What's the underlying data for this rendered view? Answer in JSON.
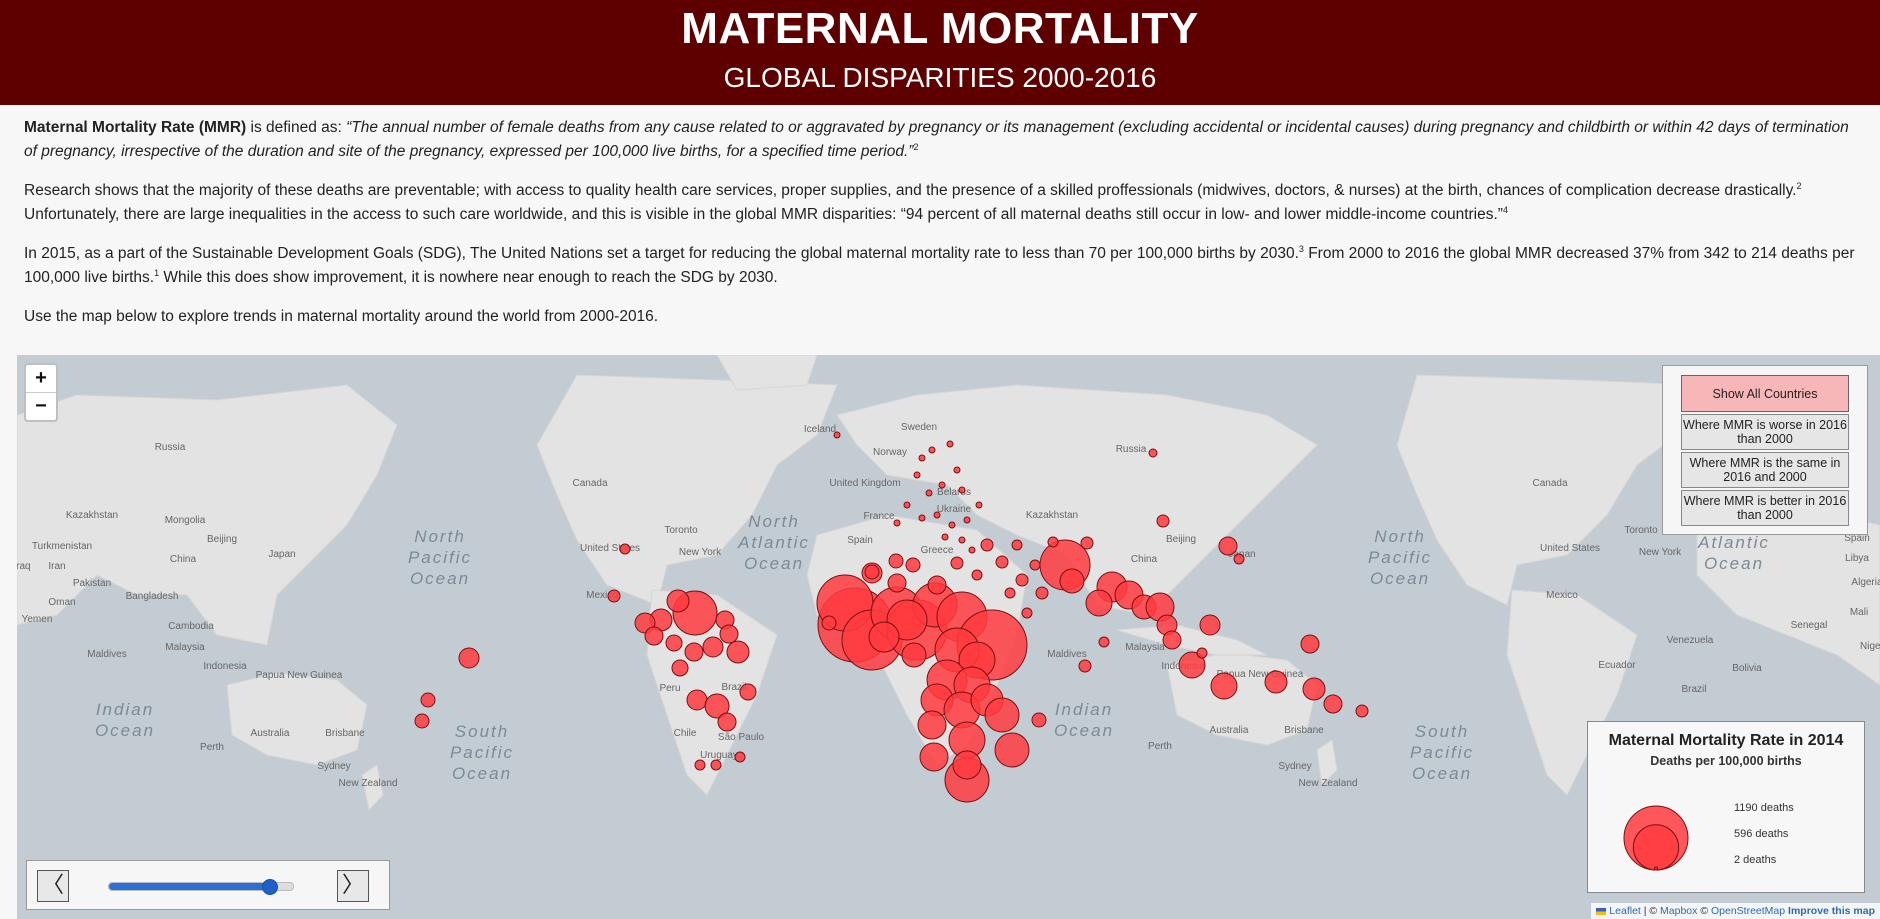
{
  "header": {
    "title": "MATERNAL MORTALITY",
    "subtitle": "GLOBAL DISPARITIES 2000-2016"
  },
  "intro": {
    "p1_term": "Maternal Mortality Rate (MMR)",
    "p1_is": " is defined as: ",
    "p1_quote": "“The annual number of female deaths from any cause related to or aggravated by pregnancy or its management (excluding accidental or incidental causes) during pregnancy and childbirth or within 42 days of termination of pregnancy, irrespective of the duration and site of the pregnancy, expressed per 100,000 live births, for a specified time period.”",
    "p1_ref": "2",
    "p2_a": "Research shows that the majority of these deaths are preventable; with access to quality health care services, proper supplies, and the presence of a skilled proffessionals (midwives, doctors, & nurses) at the birth, chances of complication decrease drastically.",
    "p2_ref1": "2",
    "p2_b": " Unfortunately, there are large inequalities in the access to such care worldwide, and this is visible in the global MMR disparities: “94 percent of all maternal deaths still occur in low- and lower middle-income countries.”",
    "p2_ref2": "4",
    "p3_a": "In 2015, as a part of the Sustainable Development Goals (SDG), The United Nations set a target for reducing the global maternal mortality rate to less than 70 per 100,000 births by 2030.",
    "p3_ref1": "3",
    "p3_b": " From 2000 to 2016 the global MMR decreased 37% from 342 to 214 deaths per 100,000 live births.",
    "p3_ref2": "1",
    "p3_c": " While this does show improvement, it is nowhere near enough to reach the SDG by 2030.",
    "p4": "Use the map below to explore trends in maternal mortality around the world from 2000-2016."
  },
  "map": {
    "zoom_in": "+",
    "zoom_out": "−",
    "labels": {
      "ocean_north_pacific": [
        "North",
        "Pacific",
        "Ocean"
      ],
      "ocean_north_atlantic": [
        "North",
        "Atlantic",
        "Ocean"
      ],
      "ocean_indian": [
        "Indian",
        "Ocean"
      ],
      "ocean_south_pacific": [
        "South",
        "Pacific",
        "Ocean"
      ],
      "ocean_north_pacific_2": [
        "North",
        "Pacific",
        "Ocean"
      ],
      "ocean_atlantic_2": [
        "Atlantic",
        "Ocean"
      ],
      "ocean_indian_2": [
        "Indian",
        "Ocean"
      ],
      "ocean_south_pacific_2": [
        "South",
        "Pacific",
        "Ocean"
      ],
      "places": [
        "Russia",
        "Kazakhstan",
        "Mongolia",
        "Beijing",
        "Japan",
        "China",
        "Turkmenistan",
        "Iraq",
        "Iran",
        "Pakistan",
        "Bangladesh",
        "Oman",
        "Yemen",
        "Cambodia",
        "Malaysia",
        "Maldives",
        "Indonesia",
        "Papua New Guinea",
        "Australia",
        "Brisbane",
        "Perth",
        "Sydney",
        "New Zealand",
        "Canada",
        "Toronto",
        "United States",
        "New York",
        "Mexico",
        "Peru",
        "Brazil",
        "Chile",
        "São Paulo",
        "Uruguay",
        "Iceland",
        "Sweden",
        "Norway",
        "United Kingdom",
        "France",
        "Spain",
        "Belarus",
        "Ukraine",
        "Greece",
        "Kazakhstan",
        "Russia",
        "Beijing",
        "China",
        "Japan",
        "Malaysia",
        "Indonesia",
        "Papua New Guinea",
        "Australia",
        "Brisbane",
        "Sydney",
        "New Zealand",
        "Maldives",
        "Canada",
        "Toronto",
        "United States",
        "New York",
        "Mexico",
        "Venezuela",
        "Ecuador",
        "Brazil",
        "Bolivia",
        "Senegal",
        "Mali",
        "Niger",
        "Algeria",
        "Libya",
        "Spain",
        "Perth"
      ]
    }
  },
  "filters": {
    "show_all": "Show All Countries",
    "worse": "Where MMR is worse in 2016 than 2000",
    "same": "Where MMR is the same in 2016 and 2000",
    "better": "Where MMR is better in 2016 than 2000"
  },
  "legend": {
    "title": "Maternal Mortality Rate in 2014",
    "subtitle": "Deaths per 100,000 births",
    "max_label": "1190 deaths",
    "mid_label": "596 deaths",
    "min_label": "2 deaths",
    "max_value": 1190,
    "mid_value": 596,
    "min_value": 2
  },
  "slider": {
    "prev": "〈",
    "next": "〉",
    "min_year": 2000,
    "max_year": 2016,
    "current_year": 2014
  },
  "attribution": {
    "leaflet": "Leaflet",
    "sep1": " | © ",
    "mapbox": "Mapbox",
    "sep2": " © ",
    "osm": "OpenStreetMap",
    "improve": "Improve this map"
  },
  "colors": {
    "header_bg": "#5e0000",
    "bubble_fill": "#ff3b3f",
    "bubble_stroke": "#7a0f12",
    "water": "#c4ccd3",
    "land": "#e3e3e3",
    "active_filter": "#f7b6b8"
  }
}
